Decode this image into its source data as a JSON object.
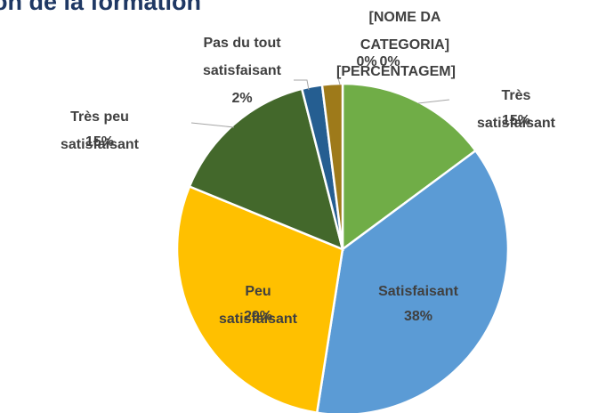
{
  "chart_data": {
    "type": "pie",
    "title": "on de la formation",
    "categories": [
      "Très satisfaisant",
      "Satisfaisant",
      "Peu satisfaisant",
      "Très peu satisfaisant",
      "Pas du tout satisfaisant",
      "[NOME DA CATEGORIA]",
      null,
      null
    ],
    "values": [
      15,
      38,
      29,
      15,
      2,
      2,
      0,
      0
    ],
    "value_labels": [
      "15%",
      "38%",
      "29%",
      "15%",
      "2%",
      "[PERCENTAGEM]",
      "0%",
      "0%"
    ],
    "colors": [
      "#70ad47",
      "#5b9bd5",
      "#ffc000",
      "#43682b",
      "#255e91",
      "#9e7a1a",
      "#636363",
      "#997300"
    ]
  }
}
